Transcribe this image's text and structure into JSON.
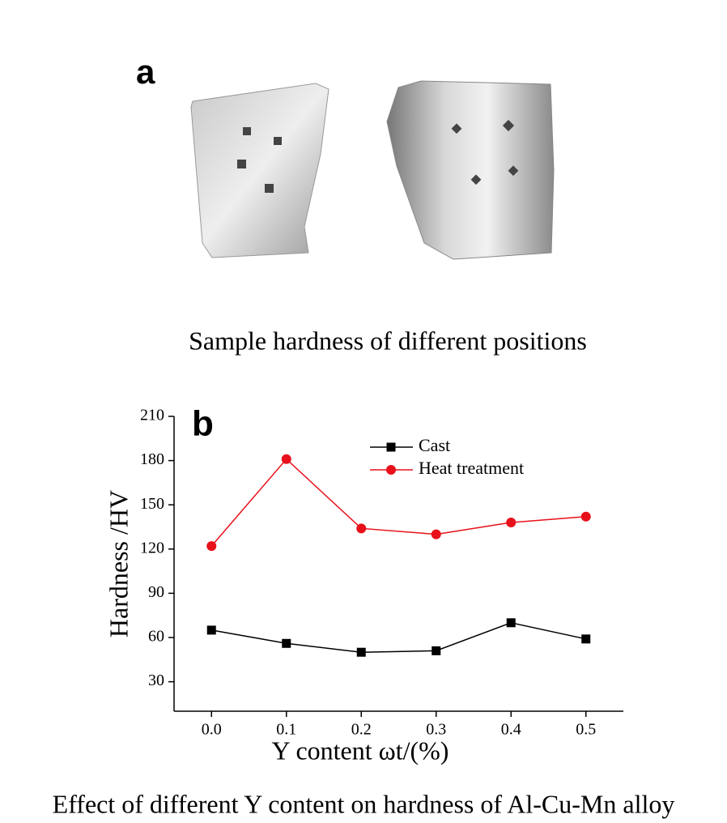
{
  "panel_a": {
    "label": "a",
    "caption": "Sample hardness of different positions"
  },
  "chart_data": {
    "type": "line",
    "panel_label": "b",
    "caption": "Effect of different Y content on hardness of Al-Cu-Mn alloy",
    "x_label": "Y content ωt/(%)",
    "y_label": "Hardness /HV",
    "x": [
      0,
      0.1,
      0.2,
      0.3,
      0.4,
      0.5
    ],
    "series": [
      {
        "name": "Cast",
        "color": "#000000",
        "marker": "square",
        "values": [
          65,
          56,
          50,
          51,
          70,
          59
        ]
      },
      {
        "name": "Heat treatment",
        "color": "#e8101a",
        "marker": "circle",
        "values": [
          122,
          181,
          134,
          130,
          138,
          142
        ]
      }
    ],
    "xlim": [
      -0.05,
      0.55
    ],
    "xticks": [
      {
        "value": 0,
        "label": "0.0"
      },
      0.1,
      0.2,
      0.3,
      0.4,
      0.5
    ],
    "ylim": [
      10,
      210
    ],
    "yticks": [
      30,
      60,
      90,
      120,
      150,
      180,
      210
    ],
    "grid": false
  }
}
